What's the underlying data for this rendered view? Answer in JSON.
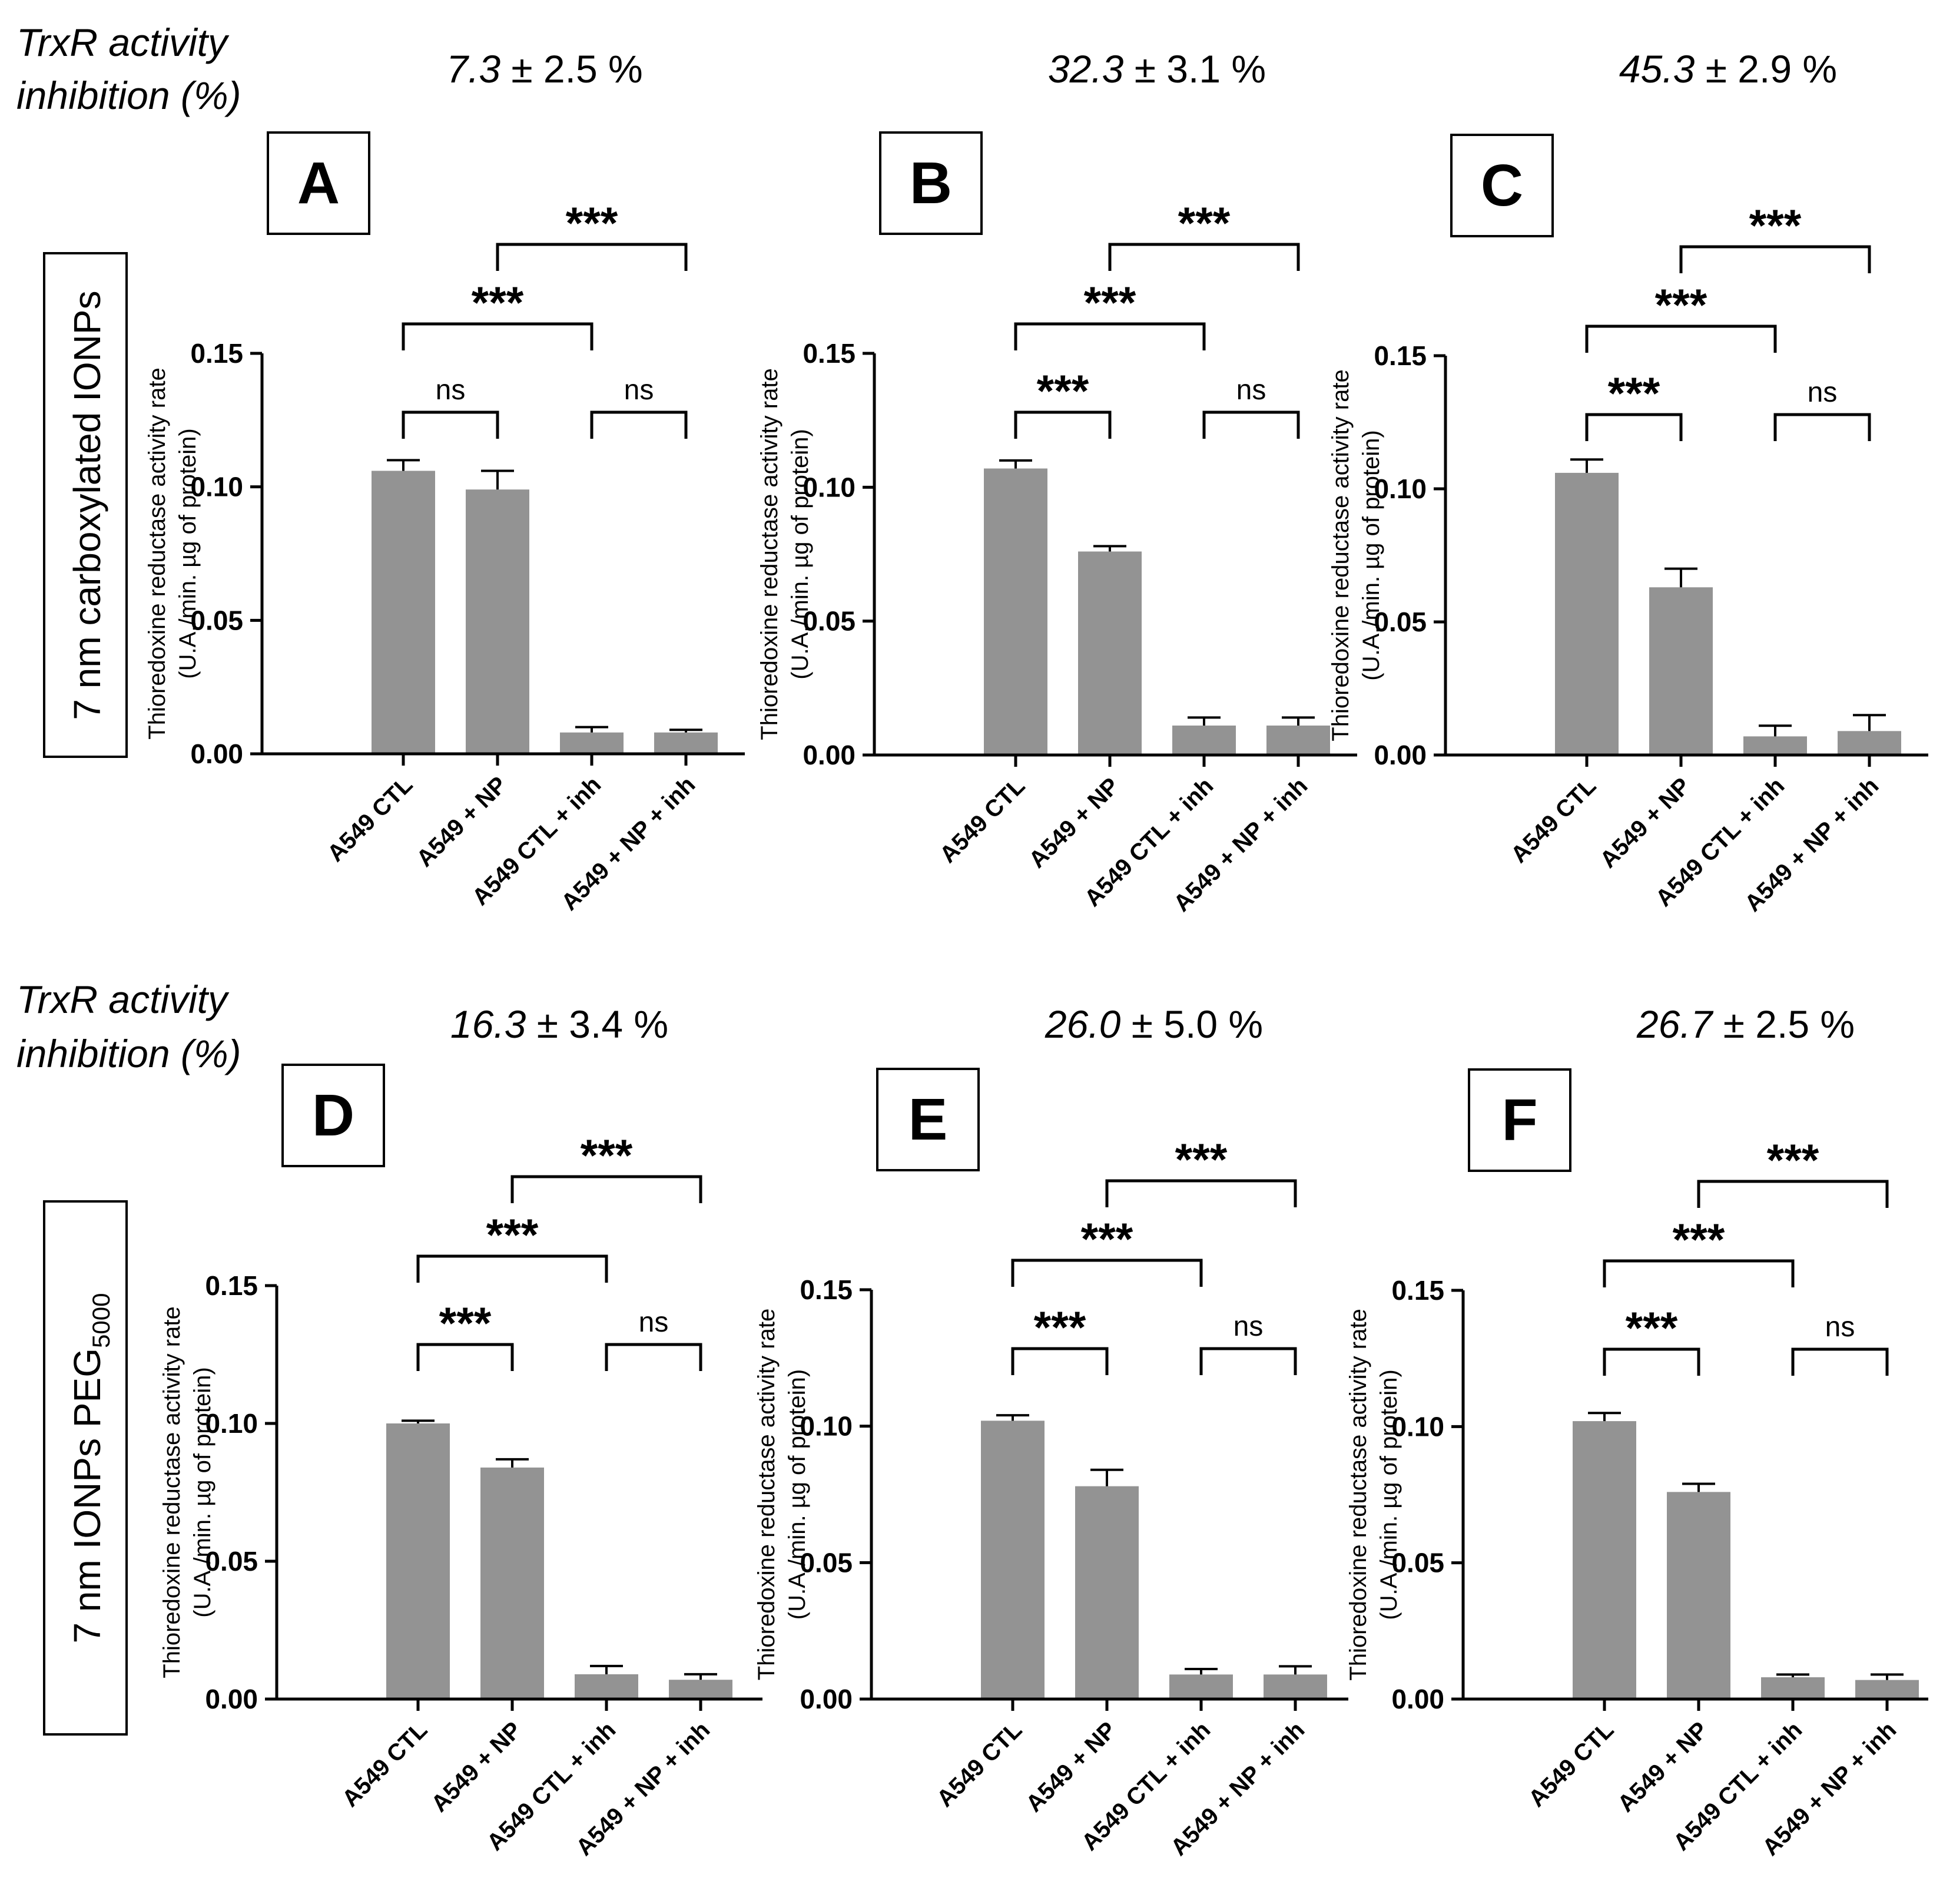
{
  "rows": [
    {
      "inhibition_label": [
        "TrxR activity",
        "inhibition (%)"
      ],
      "row_label": {
        "main": "7 nm carboxylated IONPs",
        "sub": ""
      }
    },
    {
      "inhibition_label": [
        "TrxR activity",
        "inhibition (%)"
      ],
      "row_label": {
        "main": "7 nm IONPs PEG",
        "sub": "5000"
      }
    }
  ],
  "colors": {
    "bar": "#939393",
    "axis": "#000000"
  },
  "chart_data": [
    {
      "type": "bar",
      "panel": "A",
      "inhibition": "7.3",
      "inhibition_err": "± 2.5 %",
      "ylabel": [
        "Thioredoxine reductase activity rate",
        "(U.A./min. µg of protein)"
      ],
      "categories": [
        "A549 CTL",
        "A549 + NP",
        "A549 CTL + inh",
        "A549 + NP + inh"
      ],
      "values": [
        0.106,
        0.099,
        0.008,
        0.008
      ],
      "errors": [
        0.004,
        0.007,
        0.002,
        0.001
      ],
      "ylim": [
        0,
        0.15
      ],
      "yticks": [
        "0.00",
        "0.05",
        "0.10",
        "0.15"
      ],
      "comparisons": [
        {
          "from": 0,
          "to": 1,
          "label": "ns"
        },
        {
          "from": 2,
          "to": 3,
          "label": "ns"
        },
        {
          "from": 0,
          "to": 2,
          "label": "***"
        },
        {
          "from": 1,
          "to": 3,
          "label": "***"
        }
      ]
    },
    {
      "type": "bar",
      "panel": "B",
      "inhibition": "32.3",
      "inhibition_err": "± 3.1 %",
      "ylabel": [
        "Thioredoxine reductase activity rate",
        "(U.A./min. µg of protein)"
      ],
      "categories": [
        "A549 CTL",
        "A549 + NP",
        "A549 CTL + inh",
        "A549 + NP + inh"
      ],
      "values": [
        0.107,
        0.076,
        0.011,
        0.011
      ],
      "errors": [
        0.003,
        0.002,
        0.003,
        0.003
      ],
      "ylim": [
        0,
        0.15
      ],
      "yticks": [
        "0.00",
        "0.05",
        "0.10",
        "0.15"
      ],
      "comparisons": [
        {
          "from": 0,
          "to": 1,
          "label": "***"
        },
        {
          "from": 2,
          "to": 3,
          "label": "ns"
        },
        {
          "from": 0,
          "to": 2,
          "label": "***"
        },
        {
          "from": 1,
          "to": 3,
          "label": "***"
        }
      ]
    },
    {
      "type": "bar",
      "panel": "C",
      "inhibition": "45.3",
      "inhibition_err": "± 2.9 %",
      "ylabel": [
        "Thioredoxine reductase activity rate",
        "(U.A./min. µg of protein)"
      ],
      "categories": [
        "A549 CTL",
        "A549 + NP",
        "A549 CTL + inh",
        "A549 + NP + inh"
      ],
      "values": [
        0.106,
        0.063,
        0.007,
        0.009
      ],
      "errors": [
        0.005,
        0.007,
        0.004,
        0.006
      ],
      "ylim": [
        0,
        0.15
      ],
      "yticks": [
        "0.00",
        "0.05",
        "0.10",
        "0.15"
      ],
      "comparisons": [
        {
          "from": 0,
          "to": 1,
          "label": "***"
        },
        {
          "from": 2,
          "to": 3,
          "label": "ns"
        },
        {
          "from": 0,
          "to": 2,
          "label": "***"
        },
        {
          "from": 1,
          "to": 3,
          "label": "***"
        }
      ]
    },
    {
      "type": "bar",
      "panel": "D",
      "inhibition": "16.3",
      "inhibition_err": "± 3.4 %",
      "ylabel": [
        "Thioredoxine reductase activity rate",
        "(U.A./min. µg of protein)"
      ],
      "categories": [
        "A549 CTL",
        "A549 + NP",
        "A549 CTL + inh",
        "A549 + NP + inh"
      ],
      "values": [
        0.1,
        0.084,
        0.009,
        0.007
      ],
      "errors": [
        0.001,
        0.003,
        0.003,
        0.002
      ],
      "ylim": [
        0,
        0.15
      ],
      "yticks": [
        "0.00",
        "0.05",
        "0.10",
        "0.15"
      ],
      "comparisons": [
        {
          "from": 0,
          "to": 1,
          "label": "***"
        },
        {
          "from": 2,
          "to": 3,
          "label": "ns"
        },
        {
          "from": 0,
          "to": 2,
          "label": "***"
        },
        {
          "from": 1,
          "to": 3,
          "label": "***"
        }
      ]
    },
    {
      "type": "bar",
      "panel": "E",
      "inhibition": "26.0",
      "inhibition_err": "± 5.0 %",
      "ylabel": [
        "Thioredoxine reductase activity rate",
        "(U.A./min. µg of protein)"
      ],
      "categories": [
        "A549 CTL",
        "A549 + NP",
        "A549 CTL + inh",
        "A549 + NP + inh"
      ],
      "values": [
        0.102,
        0.078,
        0.009,
        0.009
      ],
      "errors": [
        0.002,
        0.006,
        0.002,
        0.003
      ],
      "ylim": [
        0,
        0.15
      ],
      "yticks": [
        "0.00",
        "0.05",
        "0.10",
        "0.15"
      ],
      "comparisons": [
        {
          "from": 0,
          "to": 1,
          "label": "***"
        },
        {
          "from": 2,
          "to": 3,
          "label": "ns"
        },
        {
          "from": 0,
          "to": 2,
          "label": "***"
        },
        {
          "from": 1,
          "to": 3,
          "label": "***"
        }
      ]
    },
    {
      "type": "bar",
      "panel": "F",
      "inhibition": "26.7",
      "inhibition_err": "± 2.5 %",
      "ylabel": [
        "Thioredoxine reductase activity rate",
        "(U.A./min. µg of protein)"
      ],
      "categories": [
        "A549 CTL",
        "A549 + NP",
        "A549 CTL + inh",
        "A549 + NP + inh"
      ],
      "values": [
        0.102,
        0.076,
        0.008,
        0.007
      ],
      "errors": [
        0.003,
        0.003,
        0.001,
        0.002
      ],
      "ylim": [
        0,
        0.15
      ],
      "yticks": [
        "0.00",
        "0.05",
        "0.10",
        "0.15"
      ],
      "comparisons": [
        {
          "from": 0,
          "to": 1,
          "label": "***"
        },
        {
          "from": 2,
          "to": 3,
          "label": "ns"
        },
        {
          "from": 0,
          "to": 2,
          "label": "***"
        },
        {
          "from": 1,
          "to": 3,
          "label": "***"
        }
      ]
    }
  ]
}
